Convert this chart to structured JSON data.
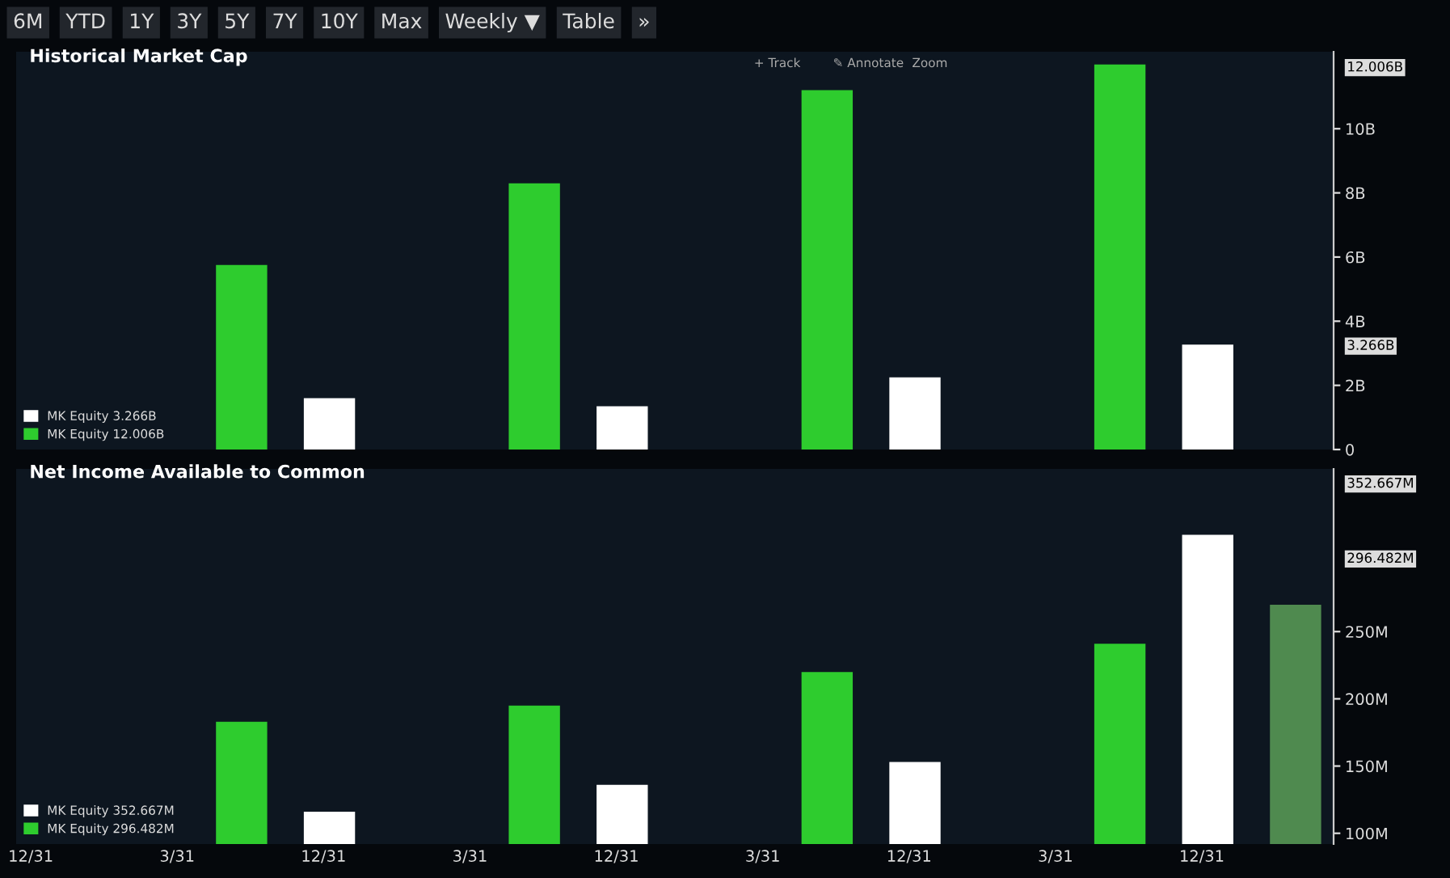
{
  "chart_data": [
    {
      "type": "bar",
      "title": "Historical Market Cap",
      "annotations": [
        "6M",
        "YTD",
        "1Y",
        "3Y",
        "5Y",
        "7Y",
        "10Y",
        "Max",
        "Weekly ▼",
        "Table",
        "»",
        "+ Track",
        "✎ Annotate",
        "Zoom",
        "12.006B",
        "3.266B"
      ],
      "categories": [
        null,
        null,
        null,
        null
      ],
      "series": [
        {
          "name": "MK Equity 12.006B",
          "color": "#2ecc2e",
          "values": [
            5.75,
            8.3,
            11.2,
            12.0
          ]
        },
        {
          "name": "MK Equity 3.266B",
          "color": "#ffffff",
          "values": [
            1.6,
            1.35,
            2.25,
            3.27
          ]
        }
      ],
      "ylim": [
        0,
        12.4
      ],
      "yticks": [
        0,
        {
          "value": 2,
          "label": "2B"
        },
        {
          "value": 4,
          "label": "4B"
        },
        {
          "value": 6,
          "label": "6B"
        },
        {
          "value": 8,
          "label": "8B"
        },
        {
          "value": 10,
          "label": "10B"
        }
      ],
      "tick_labels": "y",
      "legend": "bottom left",
      "grid": false
    },
    {
      "type": "bar",
      "title": "Net Income Available to Common",
      "annotations": [
        "352.667M",
        "296.482M",
        "12/31",
        "3/31",
        "12/31",
        "3/31",
        "12/31",
        "3/31",
        "12/31",
        "3/31",
        "12/31"
      ],
      "categories": [
        null,
        null,
        null,
        null
      ],
      "series": [
        {
          "name": "MK Equity 296.482M",
          "color": "#2ecc2e",
          "values": [
            183,
            195,
            220,
            241
          ]
        },
        {
          "name": "MK Equity 352.667M",
          "color": "#ffffff",
          "values": [
            116,
            136,
            153,
            322
          ]
        },
        {
          "color": "#4f8a4f",
          "values": [
            null,
            null,
            null,
            270
          ]
        }
      ],
      "ylim": [
        92,
        371
      ],
      "yticks": [
        {
          "value": 100,
          "label": "100M"
        },
        {
          "value": 150,
          "label": "150M"
        },
        {
          "value": 200,
          "label": "200M"
        },
        {
          "value": 250,
          "label": "250M"
        }
      ],
      "tick_labels": "y",
      "legend": "bottom left",
      "grid": false
    }
  ]
}
